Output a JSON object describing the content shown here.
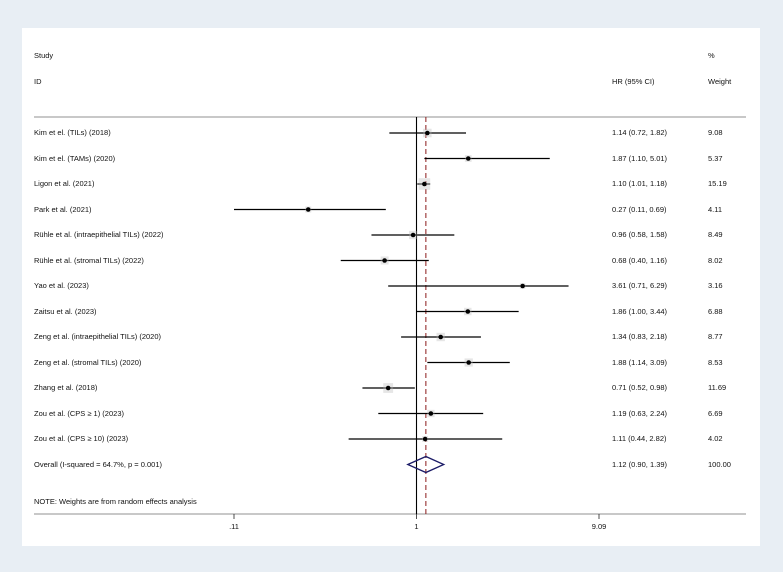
{
  "headers": {
    "study_line1": "Study",
    "study_line2": "ID",
    "hr": "HR (95% CI)",
    "weight_line1": "%",
    "weight_line2": "Weight"
  },
  "note": "NOTE: Weights are from random effects analysis",
  "colors": {
    "background": "#e8eef4",
    "panel": "#ffffff",
    "estimate_marker": "#000000",
    "null_line": "#000000",
    "overall_line": "#8b1a1a",
    "diamond": "#1a1a66"
  },
  "chart_data": {
    "type": "forest",
    "scale": "log",
    "xlim": [
      0.08,
      12
    ],
    "x_ticks": [
      {
        "value": 0.11,
        "label": ".11"
      },
      {
        "value": 1,
        "label": "1"
      },
      {
        "value": 9.09,
        "label": "9.09"
      }
    ],
    "null_value": 1,
    "overall_value": 1.12,
    "studies": [
      {
        "label": "Kim et el. (TILs) (2018)",
        "hr": 1.14,
        "lo": 0.72,
        "hi": 1.82,
        "ci_text": "1.14 (0.72, 1.82)",
        "weight": "9.08"
      },
      {
        "label": "Kim et el. (TAMs) (2020)",
        "hr": 1.87,
        "lo": 1.1,
        "hi": 5.01,
        "ci_text": "1.87 (1.10, 5.01)",
        "weight": "5.37"
      },
      {
        "label": "Ligon et al. (2021)",
        "hr": 1.1,
        "lo": 1.01,
        "hi": 1.18,
        "ci_text": "1.10 (1.01, 1.18)",
        "weight": "15.19"
      },
      {
        "label": "Park et al. (2021)",
        "hr": 0.27,
        "lo": 0.11,
        "hi": 0.69,
        "ci_text": "0.27 (0.11, 0.69)",
        "weight": "4.11"
      },
      {
        "label": "Rühle et al. (intraepithelial TILs) (2022)",
        "hr": 0.96,
        "lo": 0.58,
        "hi": 1.58,
        "ci_text": "0.96 (0.58, 1.58)",
        "weight": "8.49"
      },
      {
        "label": "Rühle et al. (stromal TILs) (2022)",
        "hr": 0.68,
        "lo": 0.4,
        "hi": 1.16,
        "ci_text": "0.68 (0.40, 1.16)",
        "weight": "8.02"
      },
      {
        "label": "Yao et al. (2023)",
        "hr": 3.61,
        "lo": 0.71,
        "hi": 6.29,
        "ci_text": "3.61 (0.71, 6.29)",
        "weight": "3.16"
      },
      {
        "label": "Zaitsu et al. (2023)",
        "hr": 1.86,
        "lo": 1.0,
        "hi": 3.44,
        "ci_text": "1.86 (1.00, 3.44)",
        "weight": "6.88"
      },
      {
        "label": "Zeng et al. (intraepithelial TILs) (2020)",
        "hr": 1.34,
        "lo": 0.83,
        "hi": 2.18,
        "ci_text": "1.34 (0.83, 2.18)",
        "weight": "8.77"
      },
      {
        "label": "Zeng et al. (stromal TILs) (2020)",
        "hr": 1.88,
        "lo": 1.14,
        "hi": 3.09,
        "ci_text": "1.88 (1.14, 3.09)",
        "weight": "8.53"
      },
      {
        "label": "Zhang et al. (2018)",
        "hr": 0.71,
        "lo": 0.52,
        "hi": 0.98,
        "ci_text": "0.71 (0.52, 0.98)",
        "weight": "11.69"
      },
      {
        "label": "Zou et al. (CPS ≥ 1) (2023)",
        "hr": 1.19,
        "lo": 0.63,
        "hi": 2.24,
        "ci_text": "1.19 (0.63, 2.24)",
        "weight": "6.69"
      },
      {
        "label": "Zou et al. (CPS ≥ 10) (2023)",
        "hr": 1.11,
        "lo": 0.44,
        "hi": 2.82,
        "ci_text": "1.11 (0.44, 2.82)",
        "weight": "4.02"
      }
    ],
    "overall": {
      "label": "Overall  (I-squared = 64.7%, p = 0.001)",
      "hr": 1.12,
      "lo": 0.9,
      "hi": 1.39,
      "ci_text": "1.12 (0.90, 1.39)",
      "weight": "100.00"
    }
  }
}
